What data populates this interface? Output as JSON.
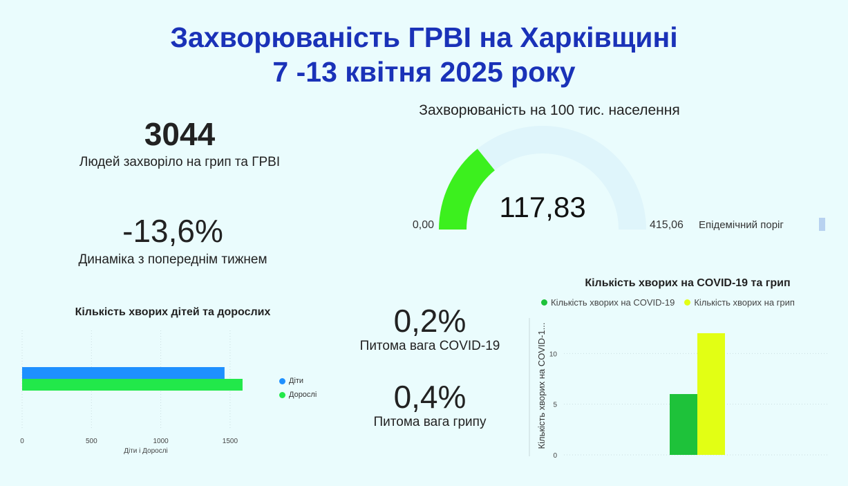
{
  "header": {
    "title_line1": "Захворюваність ГРВІ на Харківщині",
    "title_line2": "7 -13 квітня 2025 року"
  },
  "kpis": {
    "total_value": "3044",
    "total_label": "Людей захворіло на грип та ГРВІ",
    "dynamics_value": "-13,6%",
    "dynamics_label": "Динаміка з попереднім тижнем",
    "covid_share_value": "0,2%",
    "covid_share_label": "Питома вага COVID-19",
    "flu_share_value": "0,4%",
    "flu_share_label": "Питома вага грипу"
  },
  "colors": {
    "title": "#1a32b8",
    "gauge_fill": "#3cf01e",
    "gauge_track": "#dff5fb",
    "children": "#1e90ff",
    "adults": "#22e84a",
    "covid": "#1ec23a",
    "flu": "#e2ff14"
  },
  "chart_data": [
    {
      "type": "gauge",
      "title": "Захворюваність на 100 тис. населення",
      "value": 117.83,
      "value_label": "117,83",
      "min": 0,
      "min_label": "0,00",
      "max": 415.06,
      "max_label": "415,06",
      "target_label": "Епідемічний поріг"
    },
    {
      "type": "bar",
      "orientation": "horizontal",
      "title": "Кількість хворих дітей та дорослих",
      "xlabel": "Діти і Дорослі",
      "xlim": [
        0,
        1650
      ],
      "xticks": [
        0,
        500,
        1000,
        1500
      ],
      "series": [
        {
          "name": "Діти",
          "values": [
            1460
          ]
        },
        {
          "name": "Дорослі",
          "values": [
            1590
          ]
        }
      ],
      "legend": "right"
    },
    {
      "type": "bar",
      "title": "Кількість хворих на COVID-19 та грип",
      "ylabel": "Кількість хворих на COVID-1...",
      "ylim": [
        0,
        13.5
      ],
      "yticks": [
        0,
        5,
        10
      ],
      "series": [
        {
          "name": "Кількість хворих на COVID-19",
          "values": [
            6
          ]
        },
        {
          "name": "Кількість хворих на грип",
          "values": [
            12
          ]
        }
      ],
      "legend": "top"
    }
  ]
}
